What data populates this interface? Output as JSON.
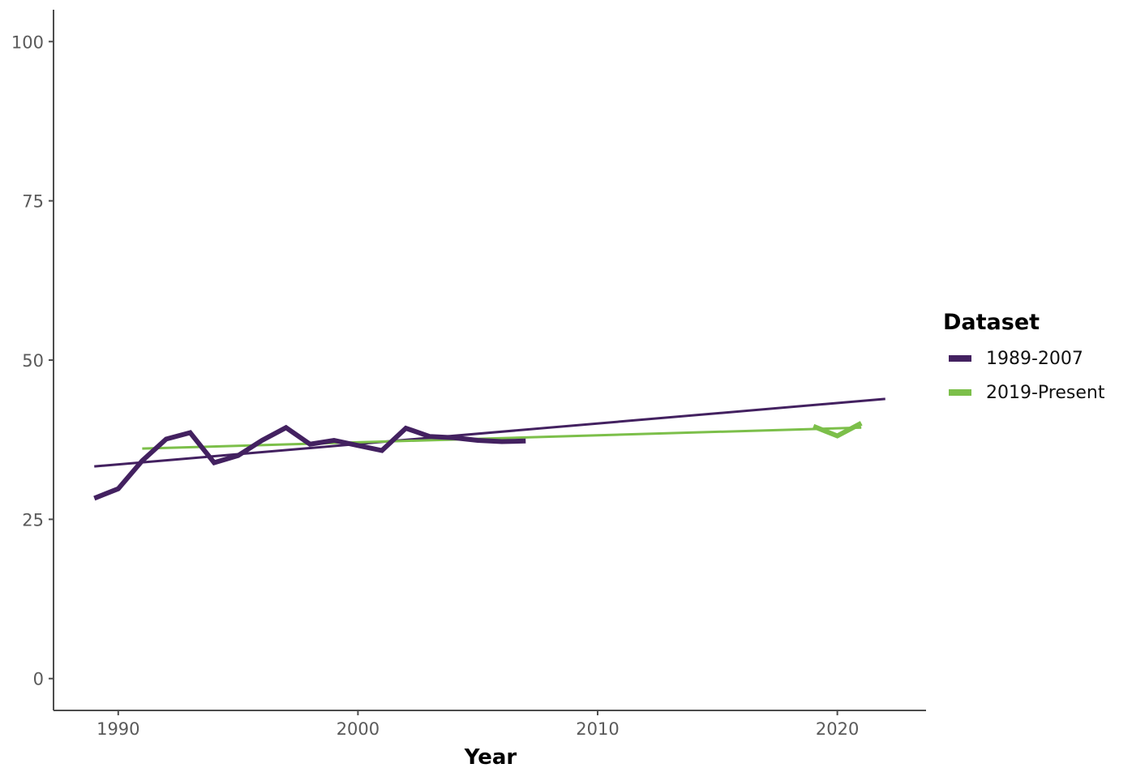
{
  "chart_data": {
    "type": "line",
    "title": "",
    "xlabel": "Year",
    "ylabel": "",
    "xlim": [
      1987.3,
      2023.7
    ],
    "ylim": [
      -5,
      105
    ],
    "x_ticks": [
      1990,
      2000,
      2010,
      2020
    ],
    "y_ticks": [
      0,
      25,
      50,
      75,
      100
    ],
    "grid": false,
    "legend": {
      "title": "Dataset",
      "position": "right"
    },
    "series": [
      {
        "name": "1989-2007",
        "color": "#432160",
        "x": [
          1989,
          1990,
          1991,
          1992,
          1993,
          1994,
          1995,
          1996,
          1997,
          1998,
          1999,
          2000,
          2001,
          2002,
          2003,
          2004,
          2005,
          2006,
          2007
        ],
        "values": [
          28.3,
          29.8,
          34.2,
          37.6,
          38.6,
          33.9,
          35.0,
          37.4,
          39.4,
          36.8,
          37.4,
          36.6,
          35.8,
          39.3,
          38.0,
          37.8,
          37.4,
          37.2,
          37.3
        ]
      },
      {
        "name": "2019-Present",
        "color": "#7cbf4a",
        "x": [
          2019,
          2020,
          2021
        ],
        "values": [
          39.6,
          38.1,
          40.1
        ]
      }
    ],
    "trendlines": [
      {
        "series": "1989-2007",
        "color": "#432160",
        "x": [
          1989,
          2022
        ],
        "values": [
          33.3,
          43.9
        ]
      },
      {
        "series": "2019-Present",
        "color": "#7cbf4a",
        "x": [
          1991,
          2021
        ],
        "values": [
          36.1,
          39.4
        ]
      }
    ]
  }
}
